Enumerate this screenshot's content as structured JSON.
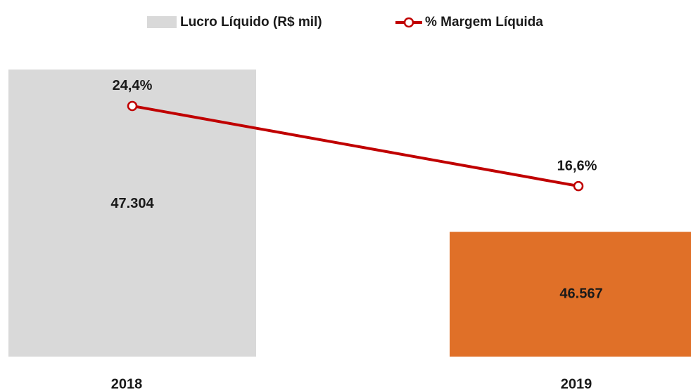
{
  "chart_data": {
    "type": "bar_line",
    "categories": [
      "2018",
      "2019"
    ],
    "series": [
      {
        "name": "Lucro Líquido (R$ mil)",
        "type": "bar",
        "colors": [
          "#d9d9d9",
          "#e07028"
        ],
        "color": "#d9d9d9",
        "label_colors": [
          "#1a1a1a",
          "#ffffff"
        ],
        "values": [
          47304,
          46567
        ],
        "value_labels": [
          "47.304",
          "46.567"
        ]
      },
      {
        "name": "% Margem Líquida",
        "type": "line",
        "axis": "y2",
        "color": "#c00000",
        "values": [
          24.4,
          16.6
        ],
        "value_labels": [
          "24,4%",
          "16,6%"
        ]
      }
    ],
    "ylim": [
      46000,
      47400
    ],
    "y2lim": [
      0,
      30
    ],
    "legend": "top"
  }
}
